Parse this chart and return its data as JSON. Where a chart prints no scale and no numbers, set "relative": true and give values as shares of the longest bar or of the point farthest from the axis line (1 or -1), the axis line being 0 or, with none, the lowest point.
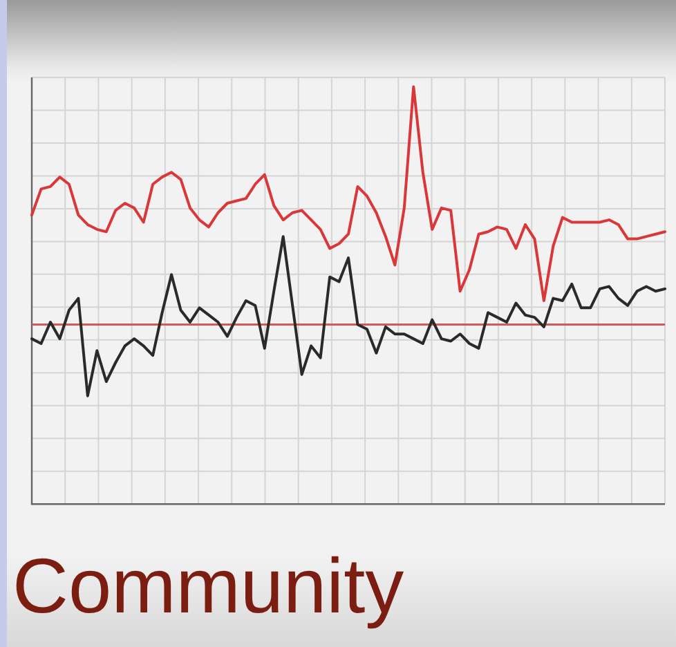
{
  "chart_data": {
    "type": "line",
    "title": "Community",
    "relative": true,
    "grid": true,
    "legend": false,
    "marker": "none",
    "line_style": "solid",
    "categories": [
      null,
      null,
      null,
      null,
      null,
      null,
      null,
      null,
      null,
      null,
      null,
      null,
      null,
      null,
      null,
      null,
      null,
      null,
      null,
      null,
      null,
      null,
      null,
      null,
      null,
      null,
      null,
      null,
      null,
      null,
      null,
      null,
      null,
      null,
      null,
      null,
      null,
      null,
      null,
      null,
      null,
      null,
      null,
      null,
      null,
      null,
      null,
      null,
      null,
      null,
      null,
      null,
      null,
      null,
      null,
      null,
      null,
      null,
      null,
      null,
      null,
      null,
      null,
      null,
      null,
      null,
      null,
      null,
      null
    ],
    "series": [
      {
        "color": "#d9383a",
        "values": [
          0.46,
          0.57,
          0.58,
          0.62,
          0.59,
          0.46,
          0.42,
          0.4,
          0.39,
          0.48,
          0.51,
          0.49,
          0.43,
          0.59,
          0.62,
          0.64,
          0.61,
          0.49,
          0.44,
          0.41,
          0.47,
          0.51,
          0.52,
          0.53,
          0.59,
          0.63,
          0.5,
          0.44,
          0.47,
          0.48,
          0.44,
          0.4,
          0.32,
          0.34,
          0.38,
          0.58,
          0.54,
          0.47,
          0.37,
          0.25,
          0.49,
          1.0,
          0.64,
          0.4,
          0.49,
          0.48,
          0.14,
          0.23,
          0.38,
          0.39,
          0.41,
          0.4,
          0.32,
          0.42,
          0.36,
          0.1,
          0.33,
          0.45,
          0.43,
          0.43,
          0.43,
          0.43,
          0.44,
          0.42,
          0.36,
          0.36,
          0.37,
          0.38,
          0.39
        ]
      },
      {
        "color": "#2a2a2a",
        "values": [
          -0.06,
          -0.08,
          0.01,
          -0.06,
          0.06,
          0.11,
          -0.3,
          -0.11,
          -0.24,
          -0.16,
          -0.09,
          -0.06,
          -0.09,
          -0.13,
          0.05,
          0.21,
          0.06,
          0.01,
          0.07,
          0.04,
          0.01,
          -0.05,
          0.03,
          0.1,
          0.08,
          -0.1,
          0.14,
          0.37,
          0.08,
          -0.21,
          -0.09,
          -0.14,
          0.2,
          0.18,
          0.28,
          0.0,
          -0.02,
          -0.12,
          -0.01,
          -0.04,
          -0.04,
          -0.06,
          -0.08,
          0.02,
          -0.06,
          -0.07,
          -0.04,
          -0.08,
          -0.1,
          0.05,
          0.03,
          0.01,
          0.09,
          0.04,
          0.03,
          -0.01,
          0.11,
          0.1,
          0.17,
          0.07,
          0.07,
          0.15,
          0.16,
          0.11,
          0.08,
          0.14,
          0.16,
          0.14,
          0.15
        ]
      }
    ],
    "ref_lines": [
      {
        "axis": "y",
        "value": 0,
        "color": "#d05a5a"
      }
    ]
  }
}
